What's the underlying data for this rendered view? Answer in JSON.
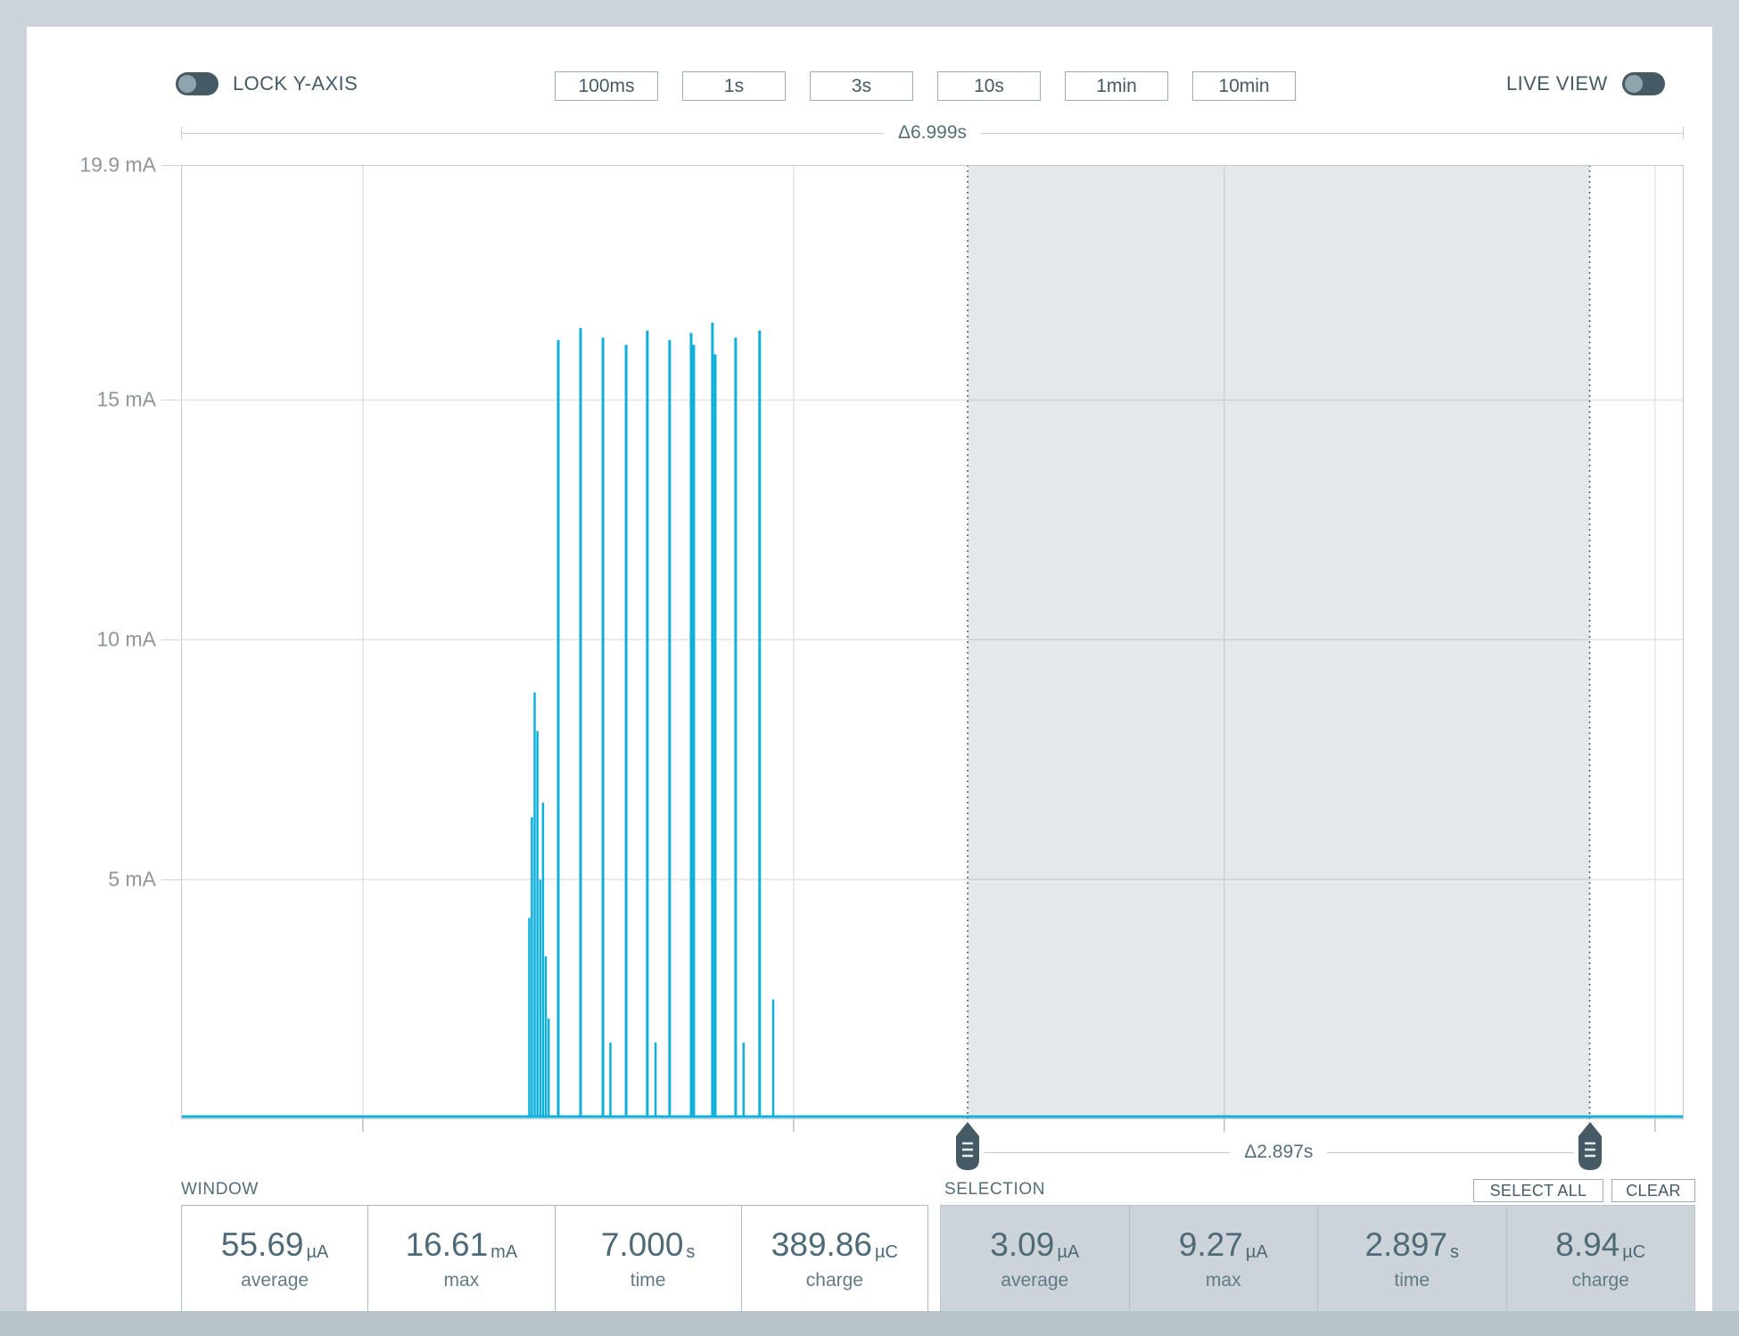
{
  "toolbar": {
    "lock_y_axis": {
      "label": "LOCK Y-AXIS",
      "on": false
    },
    "window_buttons": [
      "100ms",
      "1s",
      "3s",
      "10s",
      "1min",
      "10min"
    ],
    "live_view": {
      "label": "LIVE VIEW",
      "on": false
    }
  },
  "chart_data": {
    "type": "line",
    "unit": "mA",
    "line_color": "#0FAFDB",
    "grid_color": "#e3e3e3",
    "window_delta_label": "Δ6.999s",
    "x_window_s": 6.999,
    "y_max": 19.9,
    "y_ticks": [
      {
        "label": "19.9 mA",
        "value": 19.9
      },
      {
        "label": "15 mA",
        "value": 15
      },
      {
        "label": "10 mA",
        "value": 10
      },
      {
        "label": "5 mA",
        "value": 5
      }
    ],
    "x_gridlines_s": [
      0.847,
      2.853,
      4.859,
      6.865
    ],
    "baseline_mA": 0.056,
    "spikes": [
      {
        "t": 1.622,
        "mA": 4.2
      },
      {
        "t": 1.634,
        "mA": 6.3
      },
      {
        "t": 1.647,
        "mA": 8.9
      },
      {
        "t": 1.66,
        "mA": 8.1
      },
      {
        "t": 1.673,
        "mA": 5.0
      },
      {
        "t": 1.686,
        "mA": 6.6
      },
      {
        "t": 1.699,
        "mA": 3.4
      },
      {
        "t": 1.712,
        "mA": 2.1
      },
      {
        "t": 1.757,
        "mA": 16.25
      },
      {
        "t": 1.861,
        "mA": 16.5
      },
      {
        "t": 1.965,
        "mA": 16.3
      },
      {
        "t": 2.0,
        "mA": 1.6
      },
      {
        "t": 2.073,
        "mA": 16.15
      },
      {
        "t": 2.172,
        "mA": 16.45
      },
      {
        "t": 2.21,
        "mA": 1.6
      },
      {
        "t": 2.276,
        "mA": 16.25
      },
      {
        "t": 2.376,
        "mA": 16.4
      },
      {
        "t": 2.388,
        "mA": 16.15
      },
      {
        "t": 2.475,
        "mA": 16.61
      },
      {
        "t": 2.488,
        "mA": 15.95
      },
      {
        "t": 2.583,
        "mA": 16.3
      },
      {
        "t": 2.62,
        "mA": 1.6
      },
      {
        "t": 2.695,
        "mA": 16.45
      },
      {
        "t": 2.758,
        "mA": 2.5
      }
    ],
    "selection": {
      "start_s": 3.664,
      "end_s": 6.561,
      "delta_label": "Δ2.897s",
      "fill_color": "rgba(84,110,122,0.16)",
      "edge_color": "#455a64"
    },
    "stats_window": {
      "average_uA": 55.69,
      "max_mA": 16.61,
      "time_s": 7.0,
      "charge_uC": 389.86
    },
    "stats_selection": {
      "average_uA": 3.09,
      "max_uA": 9.27,
      "time_s": 2.897,
      "charge_uC": 8.94
    }
  },
  "window_stats": {
    "title": "WINDOW",
    "cells": [
      {
        "value": "55.69",
        "unit": "µA",
        "label": "average"
      },
      {
        "value": "16.61",
        "unit": "mA",
        "label": "max"
      },
      {
        "value": "7.000",
        "unit": "s",
        "label": "time"
      },
      {
        "value": "389.86",
        "unit": "µC",
        "label": "charge"
      }
    ]
  },
  "selection_stats": {
    "title": "SELECTION",
    "select_all_label": "SELECT ALL",
    "clear_label": "CLEAR",
    "cells": [
      {
        "value": "3.09",
        "unit": "µA",
        "label": "average"
      },
      {
        "value": "9.27",
        "unit": "µA",
        "label": "max"
      },
      {
        "value": "2.897",
        "unit": "s",
        "label": "time"
      },
      {
        "value": "8.94",
        "unit": "µC",
        "label": "charge"
      }
    ]
  }
}
